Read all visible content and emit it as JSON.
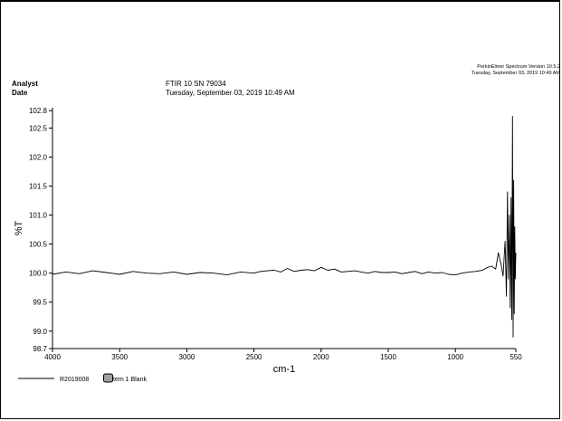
{
  "header": {
    "analyst_label": "Analyst",
    "date_label": "Date",
    "instrument": "FTIR 10 SN 79034",
    "datetime": "Tuesday, September 03, 2019 10:49 AM",
    "software_line1": "PerkinElmer Spectrum Version 10.5.2",
    "software_line2": "Tuesday, September 03, 2019 10:49 AM"
  },
  "legend": {
    "label_part1": "R2019008",
    "label_part2": "tem 1 Blank",
    "line_color": "#000000"
  },
  "chart_data": {
    "type": "line",
    "title": "",
    "xlabel": "cm-1",
    "ylabel": "%T",
    "xlim": [
      4000,
      550
    ],
    "ylim": [
      98.7,
      102.85
    ],
    "x_ticks": [
      4000,
      3500,
      3000,
      2500,
      2000,
      1500,
      1000,
      550
    ],
    "x_tick_labels": [
      "4000",
      "3500",
      "3000",
      "2500",
      "2000",
      "1500",
      "1000",
      "550"
    ],
    "y_ticks": [
      102.8,
      102.5,
      102.0,
      101.5,
      101.0,
      100.5,
      100.0,
      99.5,
      99.0,
      98.7
    ],
    "y_tick_labels": [
      "102.8",
      "102.5",
      "102.0",
      "101.5",
      "101.0",
      "100.5",
      "100.0",
      "99.5",
      "99.0",
      "98.7"
    ],
    "grid": false,
    "series": [
      {
        "color": "#000000",
        "x": [
          4000,
          3900,
          3800,
          3700,
          3600,
          3500,
          3400,
          3300,
          3200,
          3100,
          3000,
          2900,
          2800,
          2700,
          2600,
          2500,
          2450,
          2400,
          2350,
          2300,
          2250,
          2200,
          2150,
          2100,
          2050,
          2000,
          1950,
          1900,
          1850,
          1800,
          1750,
          1700,
          1650,
          1600,
          1550,
          1500,
          1450,
          1400,
          1350,
          1300,
          1250,
          1200,
          1150,
          1100,
          1050,
          1000,
          950,
          900,
          850,
          800,
          760,
          730,
          700,
          680,
          660,
          645,
          630,
          620,
          612,
          605,
          598,
          592,
          586,
          580,
          575,
          570,
          566,
          562,
          558,
          554,
          550
        ],
        "values": [
          99.98,
          100.02,
          99.99,
          100.04,
          100.01,
          99.98,
          100.03,
          100.0,
          99.99,
          100.02,
          99.98,
          100.01,
          100.0,
          99.97,
          100.02,
          100.0,
          100.03,
          100.04,
          100.05,
          100.02,
          100.08,
          100.03,
          100.05,
          100.06,
          100.04,
          100.1,
          100.05,
          100.07,
          100.02,
          100.03,
          100.04,
          100.02,
          100.0,
          100.03,
          100.01,
          100.01,
          100.02,
          99.99,
          100.01,
          100.03,
          99.99,
          100.02,
          100.0,
          100.01,
          99.98,
          99.97,
          100.0,
          100.02,
          100.03,
          100.05,
          100.1,
          100.12,
          100.07,
          100.35,
          100.15,
          99.95,
          100.55,
          99.6,
          101.4,
          99.9,
          101.0,
          99.4,
          101.3,
          99.2,
          102.7,
          98.9,
          101.6,
          99.3,
          100.8,
          99.9,
          100.35
        ]
      }
    ]
  }
}
